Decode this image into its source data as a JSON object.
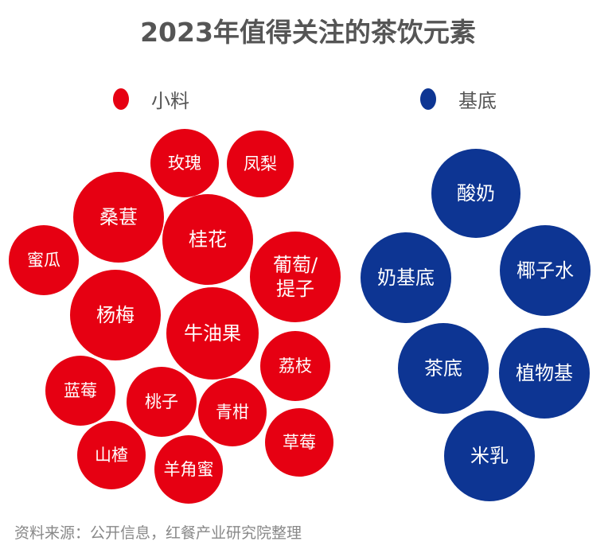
{
  "chart_data": {
    "type": "bubble",
    "title": "2023年值得关注的茶饮元素",
    "legend": [
      {
        "name": "小料",
        "color": "#e60012"
      },
      {
        "name": "基底",
        "color": "#0d3593"
      }
    ],
    "legend_position": "top",
    "series": [
      {
        "name": "小料",
        "color": "#e60012",
        "items": [
          "玫瑰",
          "凤梨",
          "桑葚",
          "桂花",
          "蜜瓜",
          "葡萄/提子",
          "杨梅",
          "牛油果",
          "荔枝",
          "蓝莓",
          "桃子",
          "青柑",
          "山楂",
          "羊角蜜",
          "草莓"
        ]
      },
      {
        "name": "基底",
        "color": "#0d3593",
        "items": [
          "酸奶",
          "奶基底",
          "椰子水",
          "茶底",
          "植物基",
          "米乳"
        ]
      }
    ]
  },
  "source": "资料来源：公开信息，红餐产业研究院整理"
}
